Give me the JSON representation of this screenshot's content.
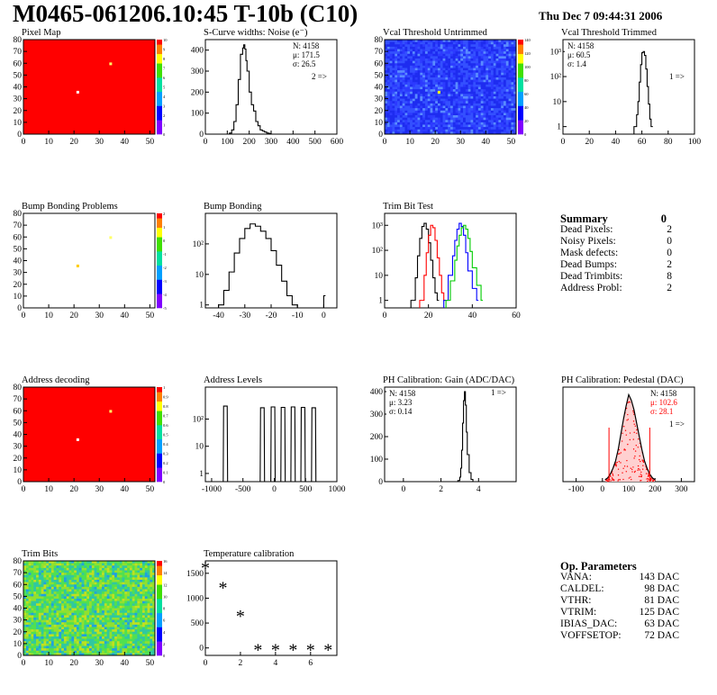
{
  "header": {
    "title": "M0465-061206.10:45 T-10b (C10)",
    "date": "Thu Dec  7 09:44:31 2006"
  },
  "colors": {
    "red": "#ff0000",
    "black": "#000000",
    "blue": "#0000ff",
    "green": "#00cc00",
    "highlight": "#ffff00"
  },
  "chart_data": [
    {
      "id": "pixel-map",
      "type": "heatmap",
      "title": "Pixel Map",
      "xlim": [
        0,
        52
      ],
      "ylim": [
        0,
        80
      ],
      "xticks": [
        0,
        10,
        20,
        30,
        40,
        50
      ],
      "yticks": [
        0,
        10,
        20,
        30,
        40,
        50,
        60,
        70,
        80
      ],
      "zlim": [
        0,
        10
      ],
      "zticks": [
        0,
        1,
        2,
        3,
        4,
        5,
        6,
        7,
        8,
        9,
        10
      ],
      "fill": "#ff0000",
      "hot_pixels": [
        {
          "x": 21.5,
          "y": 35.5,
          "color": "#ffffff"
        },
        {
          "x": 34.5,
          "y": 59.5,
          "color": "#ffff66"
        }
      ]
    },
    {
      "id": "scurve",
      "type": "line",
      "title": "S-Curve widths: Noise (e⁻)",
      "xlim": [
        0,
        600
      ],
      "ylim": [
        0,
        450
      ],
      "xticks": [
        0,
        100,
        200,
        300,
        400,
        500,
        600
      ],
      "yticks": [
        0,
        100,
        200,
        300,
        400
      ],
      "stats": {
        "N": "N: 4158",
        "mean": "μ: 171.5",
        "sigma": "σ: 26.5",
        "arrow": "2 =>"
      },
      "x": [
        100,
        110,
        120,
        130,
        140,
        150,
        160,
        170,
        175,
        180,
        185,
        190,
        200,
        210,
        220,
        230,
        240,
        250,
        260,
        270,
        280,
        290,
        300
      ],
      "values": [
        0,
        5,
        20,
        60,
        140,
        260,
        380,
        410,
        425,
        405,
        350,
        300,
        200,
        140,
        110,
        60,
        40,
        20,
        15,
        10,
        5,
        3,
        0
      ]
    },
    {
      "id": "vcal-untrimmed",
      "type": "heatmap",
      "title": "Vcal Threshold Untrimmed",
      "xlim": [
        0,
        52
      ],
      "ylim": [
        0,
        80
      ],
      "xticks": [
        0,
        10,
        20,
        30,
        40,
        50
      ],
      "yticks": [
        0,
        10,
        20,
        30,
        40,
        50,
        60,
        70,
        80
      ],
      "zlim": [
        0,
        140
      ],
      "zticks": [
        0,
        20,
        40,
        60,
        80,
        100,
        120,
        140
      ],
      "fill": "#2d3bff",
      "hot_pixels": [
        {
          "x": 21.5,
          "y": 35.5,
          "color": "#ffff00"
        }
      ]
    },
    {
      "id": "vcal-trimmed",
      "type": "line",
      "title": "Vcal Threshold Trimmed",
      "xlim": [
        0,
        100
      ],
      "ylim": [
        0.5,
        3000
      ],
      "log_y": true,
      "xticks": [
        0,
        20,
        40,
        60,
        80,
        100
      ],
      "yticks": [
        1,
        10,
        100,
        1000
      ],
      "ytick_labels": [
        "1",
        "10",
        "10²",
        "10³"
      ],
      "stats": {
        "N": "N: 4158",
        "mean": "μ: 60.5",
        "sigma": "σ:  1.4",
        "arrow": "1 =>"
      },
      "x": [
        54,
        56,
        57,
        58,
        59,
        60,
        61,
        62,
        63,
        64,
        65,
        66,
        67
      ],
      "values": [
        1,
        3,
        10,
        60,
        300,
        900,
        1000,
        700,
        200,
        40,
        8,
        2,
        1
      ]
    },
    {
      "id": "bump-problems",
      "type": "heatmap",
      "title": "Bump Bonding Problems",
      "xlim": [
        0,
        52
      ],
      "ylim": [
        0,
        80
      ],
      "xticks": [
        0,
        10,
        20,
        30,
        40,
        50
      ],
      "yticks": [
        0,
        10,
        20,
        30,
        40,
        50,
        60,
        70,
        80
      ],
      "zlim": [
        -5,
        2
      ],
      "zticks": [
        -5,
        -4,
        -3,
        -2,
        -1,
        0,
        1,
        2
      ],
      "fill": "#ffffff",
      "hot_pixels": [
        {
          "x": 21.5,
          "y": 35.5,
          "color": "#ffcc00"
        },
        {
          "x": 34.5,
          "y": 59.5,
          "color": "#ffff66"
        }
      ]
    },
    {
      "id": "bump-bonding",
      "type": "line",
      "title": "Bump Bonding",
      "xlim": [
        -45,
        5
      ],
      "ylim": [
        0.8,
        1000
      ],
      "log_y": true,
      "xticks": [
        -40,
        -30,
        -20,
        -10,
        0
      ],
      "yticks": [
        1,
        10,
        100
      ],
      "ytick_labels": [
        "1",
        "10",
        "10²"
      ],
      "x": [
        -40,
        -38,
        -36,
        -34,
        -32,
        -30,
        -28,
        -26,
        -24,
        -22,
        -20,
        -18,
        -16,
        -14,
        -12,
        -10,
        -8,
        0
      ],
      "values": [
        1,
        3,
        12,
        50,
        150,
        320,
        450,
        380,
        260,
        150,
        60,
        20,
        6,
        2,
        1,
        0,
        0,
        2
      ]
    },
    {
      "id": "trim-bit-test",
      "type": "line",
      "title": "Trim Bit Test",
      "xlim": [
        0,
        60
      ],
      "ylim": [
        0.5,
        3000
      ],
      "log_y": true,
      "xticks": [
        0,
        20,
        40,
        60
      ],
      "yticks": [
        1,
        10,
        100,
        1000
      ],
      "ytick_labels": [
        "1",
        "10",
        "10²",
        "10³"
      ],
      "series": [
        {
          "color": "#000000",
          "x": [
            12,
            14,
            15,
            16,
            17,
            18,
            19,
            20,
            21,
            22,
            23,
            24
          ],
          "values": [
            1,
            8,
            60,
            300,
            900,
            1200,
            700,
            200,
            40,
            8,
            2,
            1
          ]
        },
        {
          "color": "#ff0000",
          "x": [
            16,
            18,
            19,
            20,
            21,
            22,
            23,
            24,
            25,
            26,
            27
          ],
          "values": [
            1,
            10,
            80,
            400,
            1000,
            800,
            250,
            50,
            10,
            2,
            1
          ]
        },
        {
          "color": "#0000ff",
          "x": [
            27,
            29,
            31,
            32,
            33,
            34,
            35,
            36,
            37,
            38,
            40,
            42
          ],
          "values": [
            1,
            10,
            60,
            250,
            700,
            1200,
            900,
            400,
            80,
            15,
            3,
            1
          ]
        },
        {
          "color": "#00cc00",
          "x": [
            28,
            30,
            32,
            33,
            34,
            35,
            36,
            37,
            38,
            39,
            40,
            42,
            44
          ],
          "values": [
            1,
            6,
            40,
            150,
            400,
            800,
            1000,
            700,
            300,
            90,
            20,
            4,
            1
          ]
        }
      ]
    },
    {
      "id": "address-decoding",
      "type": "heatmap",
      "title": "Address decoding",
      "xlim": [
        0,
        52
      ],
      "ylim": [
        0,
        80
      ],
      "xticks": [
        0,
        10,
        20,
        30,
        40,
        50
      ],
      "yticks": [
        0,
        10,
        20,
        30,
        40,
        50,
        60,
        70,
        80
      ],
      "zlim": [
        0,
        1
      ],
      "zticks": [
        0,
        0.1,
        0.2,
        0.3,
        0.4,
        0.5,
        0.6,
        0.7,
        0.8,
        0.9,
        1
      ],
      "fill": "#ff0000",
      "hot_pixels": [
        {
          "x": 21.5,
          "y": 35.5,
          "color": "#ffffff"
        },
        {
          "x": 34.5,
          "y": 59.5,
          "color": "#ffff66"
        }
      ]
    },
    {
      "id": "address-levels",
      "type": "line",
      "title": "Address Levels",
      "xlim": [
        -1100,
        1000
      ],
      "ylim": [
        0.5,
        1500
      ],
      "log_y": true,
      "xticks": [
        -1000,
        -500,
        0,
        500,
        1000
      ],
      "yticks": [
        1,
        10,
        100
      ],
      "ytick_labels": [
        "1",
        "10",
        "10²"
      ],
      "peaks": [
        {
          "x": -780,
          "height": 300
        },
        {
          "x": -190,
          "height": 260
        },
        {
          "x": -20,
          "height": 280
        },
        {
          "x": 140,
          "height": 270
        },
        {
          "x": 300,
          "height": 280
        },
        {
          "x": 460,
          "height": 270
        },
        {
          "x": 630,
          "height": 260
        }
      ]
    },
    {
      "id": "ph-gain",
      "type": "line",
      "title": "PH Calibration: Gain (ADC/DAC)",
      "xlim": [
        -1,
        6
      ],
      "ylim": [
        0,
        420
      ],
      "xticks": [
        0,
        2,
        4
      ],
      "yticks": [
        0,
        100,
        200,
        300,
        400
      ],
      "stats": {
        "N": "N: 4158",
        "mean": "μ: 3.23",
        "sigma": "σ: 0.14",
        "arrow": "1 =>"
      },
      "x": [
        2.8,
        2.9,
        3.0,
        3.05,
        3.1,
        3.15,
        3.2,
        3.25,
        3.3,
        3.35,
        3.4,
        3.5,
        3.6,
        3.7
      ],
      "values": [
        0,
        5,
        20,
        60,
        140,
        260,
        360,
        400,
        340,
        220,
        120,
        40,
        10,
        0
      ]
    },
    {
      "id": "ph-pedestal",
      "type": "line",
      "title": "PH Calibration: Pedestal (DAC)",
      "xlim": [
        -150,
        350
      ],
      "ylim": [
        0,
        100
      ],
      "xticks": [
        -100,
        0,
        100,
        200,
        300
      ],
      "yticks": [],
      "stats": {
        "N": "N: 4158",
        "mean": "μ: 102.6",
        "sigma": "σ: 28.1",
        "arrow": "1 =>"
      },
      "cut_lines": [
        25,
        180
      ],
      "x": [
        10,
        20,
        30,
        40,
        50,
        60,
        70,
        80,
        90,
        100,
        110,
        120,
        130,
        140,
        150,
        160,
        170,
        180,
        190,
        200
      ],
      "values": [
        2,
        4,
        8,
        14,
        22,
        34,
        50,
        66,
        80,
        92,
        86,
        76,
        62,
        48,
        34,
        22,
        14,
        8,
        4,
        2
      ]
    },
    {
      "id": "trim-bits",
      "type": "heatmap",
      "title": "Trim Bits",
      "xlim": [
        0,
        52
      ],
      "ylim": [
        0,
        80
      ],
      "xticks": [
        0,
        10,
        20,
        30,
        40,
        50
      ],
      "yticks": [
        0,
        10,
        20,
        30,
        40,
        50,
        60,
        70,
        80
      ],
      "zlim": [
        0,
        16
      ],
      "zticks": [
        0,
        2,
        4,
        6,
        8,
        10,
        12,
        14,
        16
      ],
      "fill": "#40d060"
    },
    {
      "id": "temperature",
      "type": "scatter",
      "title": "Temperature calibration",
      "xlim": [
        0,
        7.5
      ],
      "ylim": [
        -150,
        1750
      ],
      "xticks": [
        0,
        2,
        4,
        6
      ],
      "yticks": [
        0,
        500,
        1000,
        1500
      ],
      "x": [
        0,
        1,
        2,
        3,
        4,
        5,
        6,
        7
      ],
      "values": [
        1650,
        1250,
        680,
        0,
        0,
        0,
        0,
        0
      ]
    }
  ],
  "summary": {
    "title": "Summary",
    "value": "0",
    "rows": [
      {
        "label": "Dead Pixels:",
        "value": "2"
      },
      {
        "label": "Noisy Pixels:",
        "value": "0"
      },
      {
        "label": "Mask defects:",
        "value": "0"
      },
      {
        "label": "Dead Bumps:",
        "value": "2"
      },
      {
        "label": "Dead Trimbits:",
        "value": "8"
      },
      {
        "label": "Address Probl:",
        "value": "2"
      }
    ]
  },
  "op_params": {
    "title": "Op. Parameters",
    "rows": [
      {
        "label": "VANA:",
        "value": "143 DAC"
      },
      {
        "label": "CALDEL:",
        "value": "98 DAC"
      },
      {
        "label": "VTHR:",
        "value": "81 DAC"
      },
      {
        "label": "VTRIM:",
        "value": "125 DAC"
      },
      {
        "label": "IBIAS_DAC:",
        "value": "63 DAC"
      },
      {
        "label": "VOFFSETOP:",
        "value": "72 DAC"
      }
    ]
  }
}
